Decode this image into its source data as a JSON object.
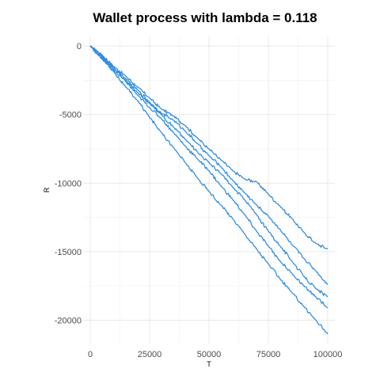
{
  "chart_data": {
    "type": "line",
    "title": "Wallet process with lambda =  0.118",
    "xlabel": "T",
    "ylabel": "R",
    "xlim": [
      -3000,
      103000
    ],
    "ylim": [
      -21700,
      700
    ],
    "xticks": [
      0,
      25000,
      50000,
      75000,
      100000
    ],
    "xtick_labels": [
      "0",
      "25000",
      "50000",
      "75000",
      "100000"
    ],
    "yticks": [
      0,
      -5000,
      -10000,
      -15000,
      -20000
    ],
    "ytick_labels": [
      "0",
      "-5000",
      "-10000",
      "-15000",
      "-20000"
    ],
    "grid": true,
    "legend": "none",
    "line_color": "#2b8ce0",
    "series": [
      {
        "x": [
          0,
          5000,
          10000,
          15000,
          20000,
          25000,
          30000,
          35000,
          40000,
          45000,
          50000,
          55000,
          60000,
          65000,
          70000,
          75000,
          80000,
          85000,
          90000,
          95000,
          100000
        ],
        "values": [
          0,
          -650,
          -1500,
          -2200,
          -3000,
          -3800,
          -4600,
          -5100,
          -5800,
          -6700,
          -7500,
          -8300,
          -9100,
          -9700,
          -9900,
          -10800,
          -11700,
          -12600,
          -13600,
          -14400,
          -14800
        ]
      },
      {
        "x": [
          0,
          5000,
          10000,
          15000,
          20000,
          25000,
          30000,
          35000,
          40000,
          45000,
          50000,
          55000,
          60000,
          65000,
          70000,
          75000,
          80000,
          85000,
          90000,
          95000,
          100000
        ],
        "values": [
          0,
          -750,
          -1600,
          -2400,
          -3200,
          -4100,
          -4900,
          -5400,
          -6200,
          -7100,
          -8000,
          -8800,
          -9800,
          -10700,
          -11600,
          -12400,
          -13400,
          -14500,
          -15500,
          -16400,
          -17400
        ]
      },
      {
        "x": [
          0,
          5000,
          10000,
          15000,
          20000,
          25000,
          30000,
          35000,
          40000,
          45000,
          50000,
          55000,
          60000,
          65000,
          70000,
          75000,
          80000,
          85000,
          90000,
          95000,
          100000
        ],
        "values": [
          0,
          -800,
          -1700,
          -2500,
          -3400,
          -4200,
          -5000,
          -5900,
          -6800,
          -7700,
          -8500,
          -9300,
          -10300,
          -11200,
          -12300,
          -13500,
          -14600,
          -15700,
          -16800,
          -17700,
          -18300
        ]
      },
      {
        "x": [
          0,
          5000,
          10000,
          15000,
          20000,
          25000,
          30000,
          35000,
          40000,
          45000,
          50000,
          55000,
          60000,
          65000,
          70000,
          75000,
          80000,
          85000,
          90000,
          95000,
          100000
        ],
        "values": [
          0,
          -900,
          -1800,
          -2600,
          -3600,
          -4500,
          -5300,
          -6300,
          -7300,
          -8200,
          -9100,
          -10200,
          -11200,
          -12300,
          -13500,
          -14600,
          -15700,
          -16600,
          -17500,
          -18300,
          -19100
        ]
      },
      {
        "x": [
          0,
          5000,
          10000,
          15000,
          20000,
          25000,
          30000,
          35000,
          40000,
          45000,
          50000,
          55000,
          60000,
          65000,
          70000,
          75000,
          80000,
          85000,
          90000,
          95000,
          100000
        ],
        "values": [
          0,
          -950,
          -1900,
          -3000,
          -4000,
          -5200,
          -6300,
          -7400,
          -8500,
          -9600,
          -10600,
          -11600,
          -12600,
          -13700,
          -14800,
          -15900,
          -17000,
          -18000,
          -19000,
          -20000,
          -21000
        ]
      }
    ]
  }
}
